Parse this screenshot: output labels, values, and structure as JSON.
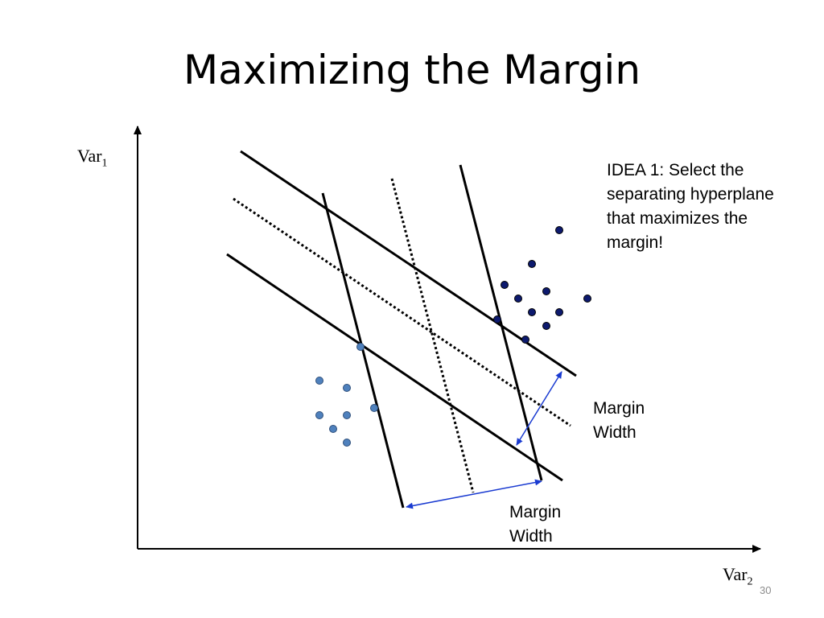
{
  "slide": {
    "title": "Maximizing the Margin",
    "slide_number": "30"
  },
  "axes": {
    "y_label": "Var",
    "y_sub": "1",
    "x_label": "Var",
    "x_sub": "2"
  },
  "idea_text": "IDEA 1: Select the separating hyperplane that maximizes the margin!",
  "margin_labels": [
    {
      "line1": "Margin",
      "line2": "Width"
    },
    {
      "line1": "Margin",
      "line2": "Width"
    }
  ],
  "colors": {
    "class_a_fill": "#0d1a6e",
    "class_b_fill": "#4f81bd",
    "arrow": "#1a3bd1"
  }
}
